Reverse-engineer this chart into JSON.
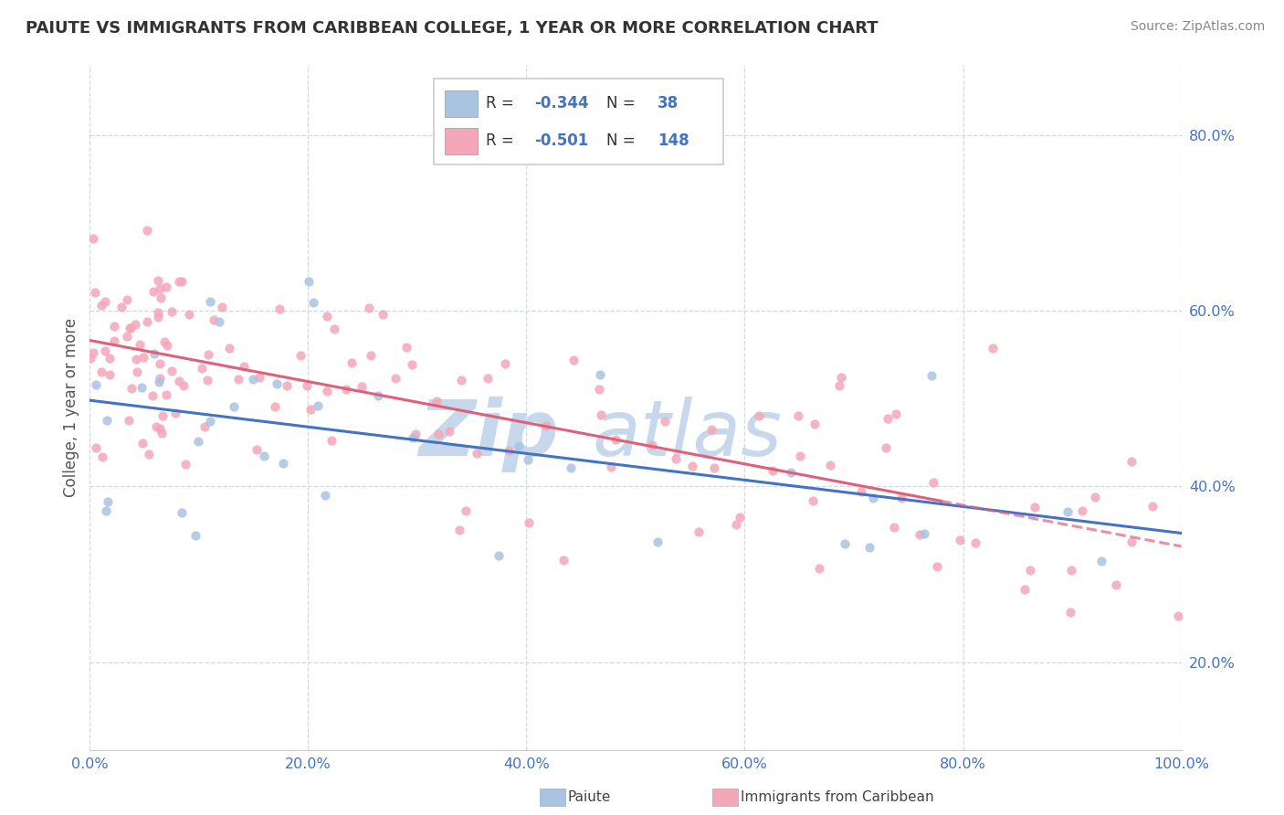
{
  "title": "PAIUTE VS IMMIGRANTS FROM CARIBBEAN COLLEGE, 1 YEAR OR MORE CORRELATION CHART",
  "source_text": "Source: ZipAtlas.com",
  "ylabel": "College, 1 year or more",
  "xlim": [
    0.0,
    1.0
  ],
  "ylim": [
    0.1,
    0.88
  ],
  "xtick_labels": [
    "0.0%",
    "20.0%",
    "40.0%",
    "60.0%",
    "80.0%",
    "100.0%"
  ],
  "xtick_values": [
    0.0,
    0.2,
    0.4,
    0.6,
    0.8,
    1.0
  ],
  "ytick_labels": [
    "20.0%",
    "40.0%",
    "60.0%",
    "80.0%"
  ],
  "ytick_values": [
    0.2,
    0.4,
    0.6,
    0.8
  ],
  "legend_label1": "Paiute",
  "legend_label2": "Immigrants from Caribbean",
  "r1": "-0.344",
  "n1": "38",
  "r2": "-0.501",
  "n2": "148",
  "color1": "#a8c4e0",
  "color2": "#f4a7b9",
  "line_color1": "#4472c4",
  "line_color2": "#e0607a",
  "background_color": "#ffffff",
  "grid_color": "#d0d8e8",
  "title_color": "#333333",
  "tick_color": "#4472c4",
  "watermark_color": "#c8d8ec",
  "source_color": "#888888",
  "ylabel_color": "#555555"
}
